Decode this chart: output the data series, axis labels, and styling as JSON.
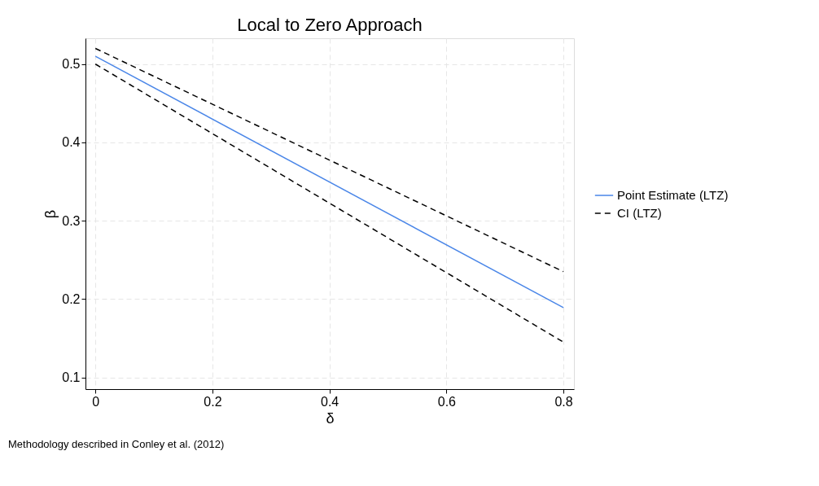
{
  "chart_data": {
    "type": "line",
    "title": "Local to Zero Approach",
    "xlabel": "δ",
    "ylabel": "β",
    "x": [
      0,
      0.8
    ],
    "series": [
      {
        "name": "Point Estimate (LTZ)",
        "color": "#4a86e8",
        "values": [
          0.51,
          0.189
        ],
        "line_style": "solid"
      },
      {
        "name": "CI (LTZ)",
        "color": "#000000",
        "values": [
          0.52,
          0.235
        ],
        "line_style": "dashed"
      },
      {
        "color": "#000000",
        "values": [
          0.5,
          0.145
        ],
        "line_style": "dashed"
      }
    ],
    "xlim": [
      -0.017,
      0.818
    ],
    "xticks": [
      0,
      0.2,
      0.4,
      0.6,
      0.8
    ],
    "ylim": [
      0.085,
      0.533
    ],
    "yticks": [
      0.1,
      0.2,
      0.3,
      0.4,
      0.5
    ],
    "grid": true,
    "legend": "right",
    "marker": "none",
    "annotations": [
      "Methodology described in Conley et al. (2012)"
    ]
  }
}
